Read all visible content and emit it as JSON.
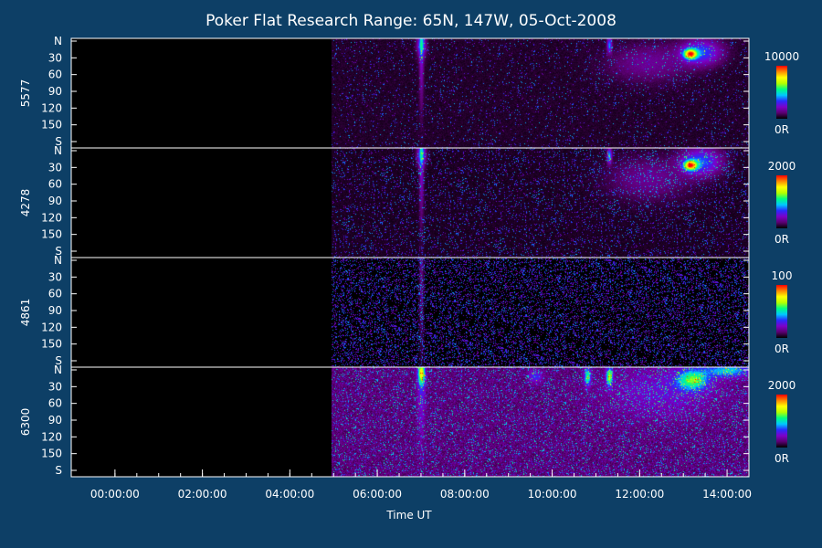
{
  "chart_data": {
    "type": "heatmap",
    "title": "Poker Flat Research Range: 65N, 147W, 05-Oct-2008",
    "xlabel": "Time UT",
    "x_range_hours": [
      -1.0,
      14.5
    ],
    "x_ticks": [
      {
        "hour": 0,
        "label": "00:00:00"
      },
      {
        "hour": 2,
        "label": "02:00:00"
      },
      {
        "hour": 4,
        "label": "04:00:00"
      },
      {
        "hour": 6,
        "label": "06:00:00"
      },
      {
        "hour": 8,
        "label": "08:00:00"
      },
      {
        "hour": 10,
        "label": "10:00:00"
      },
      {
        "hour": 12,
        "label": "12:00:00"
      },
      {
        "hour": 14,
        "label": "14:00:00"
      }
    ],
    "y_range_deg": [
      0,
      180
    ],
    "y_ticks": [
      {
        "deg": 0,
        "label": "N"
      },
      {
        "deg": 30,
        "label": "30"
      },
      {
        "deg": 60,
        "label": "60"
      },
      {
        "deg": 90,
        "label": "90"
      },
      {
        "deg": 120,
        "label": "120"
      },
      {
        "deg": 150,
        "label": "150"
      },
      {
        "deg": 180,
        "label": "S"
      }
    ],
    "colormap": [
      "#000000",
      "#5a0070",
      "#7d00c8",
      "#2a2aff",
      "#00c8ff",
      "#00ff80",
      "#b4ff00",
      "#ffff00",
      "#ff8800",
      "#ff0000"
    ],
    "data_start_hour": 4.95,
    "panels": [
      {
        "label": "5577",
        "cb_max": "10000",
        "cb_min": "0R",
        "noise": 0.05,
        "base": 0.06,
        "features": [
          {
            "t": 7.0,
            "dt": 0.05,
            "deg": 0,
            "ddeg": 100,
            "a": 0.22
          },
          {
            "t": 7.0,
            "dt": 0.1,
            "deg": 10,
            "ddeg": 18,
            "a": 0.3
          },
          {
            "t": 11.3,
            "dt": 0.05,
            "deg": 10,
            "ddeg": 12,
            "a": 0.35
          },
          {
            "t": 13.15,
            "dt": 0.15,
            "deg": 25,
            "ddeg": 8,
            "a": 0.75
          },
          {
            "t": 13.4,
            "dt": 0.45,
            "deg": 22,
            "ddeg": 20,
            "a": 0.3
          },
          {
            "t": 12.2,
            "dt": 0.9,
            "deg": 40,
            "ddeg": 30,
            "a": 0.12
          }
        ]
      },
      {
        "label": "4278",
        "cb_max": "2000",
        "cb_min": "0R",
        "noise": 0.1,
        "base": 0.05,
        "features": [
          {
            "t": 7.0,
            "dt": 0.05,
            "deg": 0,
            "ddeg": 110,
            "a": 0.22
          },
          {
            "t": 7.0,
            "dt": 0.1,
            "deg": 10,
            "ddeg": 18,
            "a": 0.3
          },
          {
            "t": 11.3,
            "dt": 0.05,
            "deg": 12,
            "ddeg": 12,
            "a": 0.4
          },
          {
            "t": 13.15,
            "dt": 0.15,
            "deg": 28,
            "ddeg": 8,
            "a": 0.75
          },
          {
            "t": 13.4,
            "dt": 0.45,
            "deg": 22,
            "ddeg": 22,
            "a": 0.32
          },
          {
            "t": 12.2,
            "dt": 0.9,
            "deg": 50,
            "ddeg": 35,
            "a": 0.12
          }
        ]
      },
      {
        "label": "4861",
        "cb_max": "100",
        "cb_min": "0R",
        "noise": 0.22,
        "base": 0.02,
        "features": [
          {
            "t": 7.0,
            "dt": 0.05,
            "deg": 0,
            "ddeg": 150,
            "a": 0.12
          }
        ]
      },
      {
        "label": "6300",
        "cb_max": "2000",
        "cb_min": "0R",
        "noise": 0.12,
        "base": 0.18,
        "features": [
          {
            "t": 7.0,
            "dt": 0.08,
            "deg": 10,
            "ddeg": 16,
            "a": 0.5
          },
          {
            "t": 7.0,
            "dt": 0.08,
            "deg": 0,
            "ddeg": 100,
            "a": 0.2
          },
          {
            "t": 11.3,
            "dt": 0.07,
            "deg": 15,
            "ddeg": 14,
            "a": 0.55
          },
          {
            "t": 10.8,
            "dt": 0.07,
            "deg": 15,
            "ddeg": 14,
            "a": 0.45
          },
          {
            "t": 13.2,
            "dt": 0.35,
            "deg": 20,
            "ddeg": 16,
            "a": 0.45
          },
          {
            "t": 14.0,
            "dt": 0.5,
            "deg": 5,
            "ddeg": 10,
            "a": 0.35
          },
          {
            "t": 12.5,
            "dt": 1.2,
            "deg": 40,
            "ddeg": 40,
            "a": 0.12
          },
          {
            "t": 9.6,
            "dt": 0.15,
            "deg": 15,
            "ddeg": 10,
            "a": 0.2
          }
        ]
      }
    ]
  }
}
